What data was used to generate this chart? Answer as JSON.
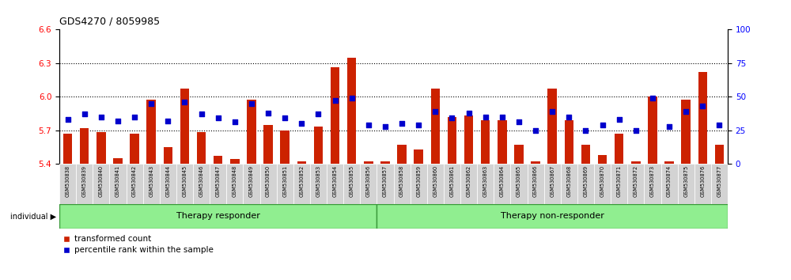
{
  "title": "GDS4270 / 8059985",
  "samples": [
    "GSM530838",
    "GSM530839",
    "GSM530840",
    "GSM530841",
    "GSM530842",
    "GSM530843",
    "GSM530844",
    "GSM530845",
    "GSM530846",
    "GSM530847",
    "GSM530848",
    "GSM530849",
    "GSM530850",
    "GSM530851",
    "GSM530852",
    "GSM530853",
    "GSM530854",
    "GSM530855",
    "GSM530856",
    "GSM530857",
    "GSM530858",
    "GSM530859",
    "GSM530860",
    "GSM530861",
    "GSM530862",
    "GSM530863",
    "GSM530864",
    "GSM530865",
    "GSM530866",
    "GSM530867",
    "GSM530868",
    "GSM530869",
    "GSM530870",
    "GSM530871",
    "GSM530872",
    "GSM530873",
    "GSM530874",
    "GSM530875",
    "GSM530876",
    "GSM530877"
  ],
  "bar_values": [
    5.67,
    5.72,
    5.68,
    5.45,
    5.67,
    5.97,
    5.55,
    6.07,
    5.68,
    5.47,
    5.44,
    5.97,
    5.75,
    5.7,
    5.42,
    5.73,
    6.26,
    6.35,
    5.42,
    5.42,
    5.57,
    5.53,
    6.07,
    5.82,
    5.83,
    5.79,
    5.79,
    5.57,
    5.42,
    6.07,
    5.79,
    5.57,
    5.48,
    5.67,
    5.42,
    6.0,
    5.42,
    5.97,
    6.22,
    5.57
  ],
  "percentile_values": [
    33,
    37,
    35,
    32,
    35,
    45,
    32,
    46,
    37,
    34,
    31,
    45,
    38,
    34,
    30,
    37,
    47,
    49,
    29,
    28,
    30,
    29,
    39,
    34,
    38,
    35,
    35,
    31,
    25,
    39,
    35,
    25,
    29,
    33,
    25,
    49,
    28,
    39,
    43,
    29
  ],
  "n_responder": 19,
  "n_total": 40,
  "group_labels": [
    "Therapy responder",
    "Therapy non-responder"
  ],
  "ylim_left": [
    5.4,
    6.6
  ],
  "ylim_right": [
    0,
    100
  ],
  "yticks_left": [
    5.4,
    5.7,
    6.0,
    6.3,
    6.6
  ],
  "yticks_right": [
    0,
    25,
    50,
    75,
    100
  ],
  "grid_values": [
    5.7,
    6.0,
    6.3
  ],
  "bar_color": "#cc2200",
  "dot_color": "#0000cc",
  "group_bg_color": "#90ee90",
  "group_border_color": "#3a9a3a",
  "tick_label_bg": "#d3d3d3",
  "legend_labels": [
    "transformed count",
    "percentile rank within the sample"
  ]
}
